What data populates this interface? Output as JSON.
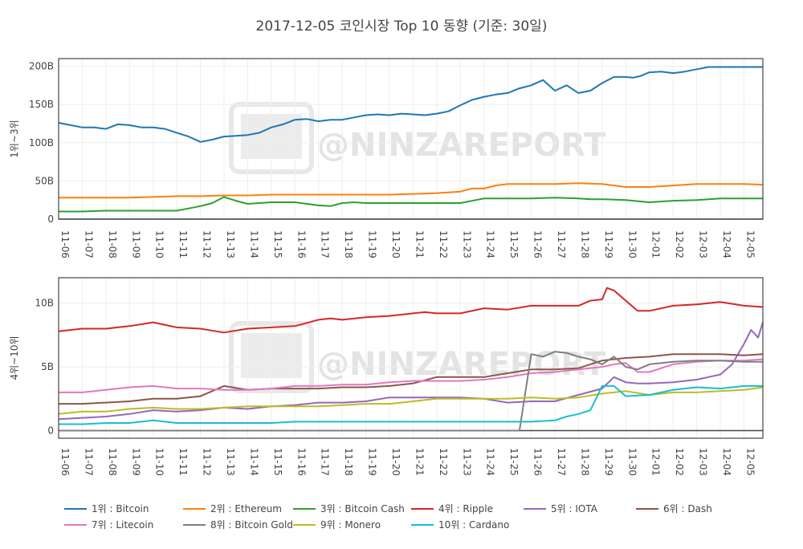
{
  "title": "2017-12-05 코인시장 Top 10 동향 (기준: 30일)",
  "watermark": "@NINZAREPORT",
  "colors": {
    "bitcoin": "#1f77b4",
    "ethereum": "#ff7f0e",
    "bitcoin_cash": "#2ca02c",
    "ripple": "#d62728",
    "iota": "#9467bd",
    "dash": "#8c564b",
    "litecoin": "#e377c2",
    "bitcoin_gold": "#7f7f7f",
    "monero": "#bcbd22",
    "cardano": "#17becf"
  },
  "chart_data": [
    {
      "type": "line",
      "ylabel": "1위~3위",
      "ylim": [
        0,
        210
      ],
      "yticks": [
        0,
        50,
        100,
        150,
        200
      ],
      "ytick_labels": [
        "0",
        "50B",
        "100B",
        "150B",
        "200B"
      ],
      "x_range": [
        0,
        29.8
      ],
      "x_ticks": [
        "11-06",
        "11-07",
        "11-08",
        "11-09",
        "11-10",
        "11-11",
        "11-12",
        "11-13",
        "11-14",
        "11-15",
        "11-16",
        "11-17",
        "11-18",
        "11-19",
        "11-20",
        "11-21",
        "11-22",
        "11-23",
        "11-24",
        "11-25",
        "11-26",
        "11-27",
        "11-28",
        "11-29",
        "11-30",
        "12-01",
        "12-02",
        "12-03",
        "12-04",
        "12-05"
      ],
      "grid": true,
      "series": [
        {
          "name": "1위 : Bitcoin",
          "color": "#1f77b4",
          "x": [
            0,
            0.5,
            1,
            1.5,
            2,
            2.5,
            3,
            3.5,
            4,
            4.5,
            5,
            5.5,
            6,
            6.5,
            7,
            7.5,
            8,
            8.5,
            9,
            9.5,
            10,
            10.5,
            11,
            11.5,
            12,
            12.5,
            13,
            13.5,
            14,
            14.5,
            15,
            15.5,
            16,
            16.5,
            17,
            17.5,
            18,
            18.5,
            19,
            19.5,
            20,
            20.5,
            21,
            21.5,
            22,
            22.5,
            23,
            23.5,
            24,
            24.3,
            24.6,
            25,
            25.5,
            26,
            26.5,
            27,
            27.5,
            28,
            28.5,
            29,
            29.5,
            29.8
          ],
          "y": [
            126,
            123,
            120,
            120,
            118,
            124,
            123,
            120,
            120,
            118,
            113,
            108,
            101,
            104,
            108,
            109,
            110,
            113,
            120,
            124,
            130,
            131,
            128,
            130,
            130,
            133,
            136,
            137,
            136,
            138,
            137,
            136,
            138,
            141,
            149,
            156,
            160,
            163,
            165,
            171,
            175,
            182,
            168,
            175,
            165,
            168,
            178,
            186,
            186,
            185,
            187,
            192,
            193,
            191,
            193,
            196,
            199,
            199,
            199,
            199,
            199,
            199
          ]
        },
        {
          "name": "2위 : Ethereum",
          "color": "#ff7f0e",
          "x": [
            0,
            1,
            2,
            3,
            4,
            5,
            6,
            7,
            8,
            9,
            10,
            11,
            12,
            13,
            14,
            15,
            16,
            17,
            17.5,
            18,
            18.5,
            19,
            20,
            21,
            22,
            23,
            24,
            25,
            26,
            27,
            28,
            29,
            29.8
          ],
          "y": [
            28,
            28,
            28,
            28,
            29,
            30,
            30,
            31,
            31,
            32,
            32,
            32,
            32,
            32,
            32,
            33,
            34,
            36,
            40,
            40,
            44,
            46,
            46,
            46,
            47,
            46,
            42,
            42,
            44,
            46,
            46,
            46,
            45
          ]
        },
        {
          "name": "3위 : Bitcoin Cash",
          "color": "#2ca02c",
          "x": [
            0,
            1,
            2,
            3,
            4,
            5,
            5.5,
            6,
            6.5,
            7,
            7.5,
            8,
            9,
            10,
            11,
            11.5,
            12,
            12.5,
            13,
            14,
            15,
            16,
            17,
            18,
            19,
            20,
            21,
            22,
            22.5,
            23,
            24,
            25,
            26,
            27,
            28,
            29,
            29.8
          ],
          "y": [
            10,
            10,
            11,
            11,
            11,
            11,
            14,
            17,
            21,
            29,
            24,
            20,
            22,
            22,
            18,
            17,
            21,
            22,
            21,
            21,
            21,
            21,
            21,
            27,
            27,
            27,
            28,
            27,
            26,
            26,
            25,
            22,
            24,
            25,
            27,
            27,
            27
          ]
        }
      ]
    },
    {
      "type": "line",
      "ylabel": "4위~10위",
      "ylim": [
        -0.6,
        12
      ],
      "yticks": [
        0,
        5,
        10
      ],
      "ytick_labels": [
        "0",
        "5B",
        "10B"
      ],
      "x_range": [
        0,
        29.8
      ],
      "x_ticks": [
        "11-06",
        "11-07",
        "11-08",
        "11-09",
        "11-10",
        "11-11",
        "11-12",
        "11-13",
        "11-14",
        "11-15",
        "11-16",
        "11-17",
        "11-18",
        "11-19",
        "11-20",
        "11-21",
        "11-22",
        "11-23",
        "11-24",
        "11-25",
        "11-26",
        "11-27",
        "11-28",
        "11-29",
        "11-30",
        "12-01",
        "12-02",
        "12-03",
        "12-04",
        "12-05"
      ],
      "grid": true,
      "series": [
        {
          "name": "4위 : Ripple",
          "color": "#d62728",
          "x": [
            0,
            1,
            2,
            3,
            4,
            5,
            6,
            7,
            8,
            9,
            10,
            11,
            11.5,
            12,
            13,
            14,
            15,
            15.5,
            16,
            17,
            18,
            19,
            20,
            21,
            22,
            22.5,
            23,
            23.2,
            23.5,
            24,
            24.5,
            25,
            26,
            27,
            28,
            29,
            29.8
          ],
          "y": [
            7.8,
            8.0,
            8.0,
            8.2,
            8.5,
            8.1,
            8.0,
            7.7,
            8.0,
            8.1,
            8.2,
            8.7,
            8.8,
            8.7,
            8.9,
            9.0,
            9.2,
            9.3,
            9.2,
            9.2,
            9.6,
            9.5,
            9.8,
            9.8,
            9.8,
            10.2,
            10.3,
            11.2,
            11.0,
            10.2,
            9.4,
            9.4,
            9.8,
            9.9,
            10.1,
            9.8,
            9.7
          ]
        },
        {
          "name": "5위 : IOTA",
          "color": "#9467bd",
          "x": [
            0,
            1,
            2,
            3,
            4,
            5,
            6,
            7,
            8,
            9,
            10,
            11,
            12,
            13,
            14,
            15,
            16,
            17,
            18,
            19,
            20,
            21,
            22,
            23,
            23.5,
            24,
            24.5,
            25,
            26,
            27,
            28,
            28.5,
            29,
            29.3,
            29.6,
            29.8
          ],
          "y": [
            0.9,
            1.0,
            1.1,
            1.3,
            1.6,
            1.5,
            1.6,
            1.8,
            1.7,
            1.9,
            2.0,
            2.2,
            2.2,
            2.3,
            2.6,
            2.6,
            2.6,
            2.6,
            2.5,
            2.2,
            2.3,
            2.3,
            2.8,
            3.3,
            4.2,
            3.8,
            3.7,
            3.7,
            3.8,
            4.0,
            4.4,
            5.2,
            6.8,
            7.9,
            7.3,
            8.5
          ]
        },
        {
          "name": "6위 : Dash",
          "color": "#8c564b",
          "x": [
            0,
            1,
            2,
            3,
            4,
            5,
            6,
            7,
            8,
            9,
            10,
            11,
            12,
            13,
            14,
            15,
            16,
            17,
            18,
            19,
            20,
            21,
            22,
            23,
            24,
            25,
            26,
            27,
            28,
            29,
            29.8
          ],
          "y": [
            2.1,
            2.1,
            2.2,
            2.3,
            2.5,
            2.5,
            2.7,
            3.5,
            3.2,
            3.3,
            3.3,
            3.3,
            3.4,
            3.4,
            3.5,
            3.7,
            4.2,
            4.2,
            4.2,
            4.5,
            4.8,
            4.8,
            4.9,
            5.5,
            5.7,
            5.8,
            6.0,
            6.0,
            6.0,
            5.9,
            6.0
          ]
        },
        {
          "name": "7위 : Litecoin",
          "color": "#e377c2",
          "x": [
            0,
            1,
            2,
            3,
            4,
            5,
            6,
            7,
            8,
            9,
            10,
            11,
            12,
            13,
            14,
            15,
            16,
            17,
            18,
            19,
            20,
            21,
            22,
            23,
            23.5,
            24,
            24.5,
            25,
            26,
            27,
            28,
            29,
            29.8
          ],
          "y": [
            3.0,
            3.0,
            3.2,
            3.4,
            3.5,
            3.3,
            3.3,
            3.2,
            3.2,
            3.3,
            3.5,
            3.5,
            3.6,
            3.6,
            3.8,
            3.9,
            3.9,
            3.9,
            4.0,
            4.2,
            4.5,
            4.6,
            4.8,
            5.0,
            5.2,
            5.3,
            4.6,
            4.6,
            5.2,
            5.4,
            5.5,
            5.5,
            5.6
          ]
        },
        {
          "name": "8위 : Bitcoin Gold",
          "color": "#7f7f7f",
          "x": [
            0,
            1,
            2,
            3,
            4,
            5,
            6,
            7,
            8,
            9,
            10,
            11,
            12,
            13,
            14,
            15,
            16,
            17,
            18,
            19,
            19.5,
            20,
            20.5,
            21,
            21.5,
            22,
            22.5,
            23,
            23.5,
            24,
            24.5,
            25,
            26,
            27,
            28,
            29,
            29.8
          ],
          "y": [
            0,
            0,
            0,
            0,
            0,
            0,
            0,
            0,
            0,
            0,
            0,
            0,
            0,
            0,
            0,
            0,
            0,
            0,
            0,
            0,
            0,
            6.0,
            5.8,
            6.2,
            6.1,
            5.8,
            5.6,
            5.2,
            5.8,
            5.0,
            4.8,
            5.2,
            5.4,
            5.5,
            5.5,
            5.4,
            5.4
          ]
        },
        {
          "name": "9위 : Monero",
          "color": "#bcbd22",
          "x": [
            0,
            1,
            2,
            3,
            4,
            5,
            6,
            7,
            8,
            9,
            10,
            11,
            12,
            13,
            14,
            15,
            16,
            17,
            18,
            19,
            20,
            21,
            22,
            23,
            24,
            25,
            26,
            27,
            28,
            29,
            29.8
          ],
          "y": [
            1.3,
            1.5,
            1.5,
            1.7,
            1.8,
            1.7,
            1.7,
            1.8,
            1.9,
            1.9,
            1.9,
            1.9,
            2.0,
            2.1,
            2.1,
            2.3,
            2.5,
            2.5,
            2.5,
            2.5,
            2.6,
            2.5,
            2.6,
            2.9,
            3.1,
            2.8,
            3.0,
            3.0,
            3.1,
            3.2,
            3.4
          ]
        },
        {
          "name": "10위 : Cardano",
          "color": "#17becf",
          "x": [
            0,
            1,
            2,
            3,
            4,
            5,
            6,
            7,
            8,
            9,
            10,
            11,
            12,
            13,
            14,
            15,
            16,
            17,
            18,
            19,
            20,
            21,
            21.5,
            22,
            22.5,
            23,
            23.5,
            24,
            25,
            26,
            27,
            28,
            29,
            29.8
          ],
          "y": [
            0.5,
            0.5,
            0.6,
            0.6,
            0.8,
            0.6,
            0.6,
            0.6,
            0.6,
            0.6,
            0.7,
            0.7,
            0.7,
            0.7,
            0.7,
            0.7,
            0.7,
            0.7,
            0.7,
            0.7,
            0.7,
            0.8,
            1.1,
            1.3,
            1.6,
            3.5,
            3.5,
            2.7,
            2.8,
            3.2,
            3.4,
            3.3,
            3.5,
            3.5
          ]
        }
      ]
    }
  ],
  "legend": [
    {
      "label": "1위 : Bitcoin",
      "color": "#1f77b4"
    },
    {
      "label": "2위 : Ethereum",
      "color": "#ff7f0e"
    },
    {
      "label": "3위 : Bitcoin Cash",
      "color": "#2ca02c"
    },
    {
      "label": "4위 : Ripple",
      "color": "#d62728"
    },
    {
      "label": "5위 : IOTA",
      "color": "#9467bd"
    },
    {
      "label": "6위 : Dash",
      "color": "#8c564b"
    },
    {
      "label": "7위 : Litecoin",
      "color": "#e377c2"
    },
    {
      "label": "8위 : Bitcoin Gold",
      "color": "#7f7f7f"
    },
    {
      "label": "9위 : Monero",
      "color": "#bcbd22"
    },
    {
      "label": "10위 : Cardano",
      "color": "#17becf"
    }
  ]
}
